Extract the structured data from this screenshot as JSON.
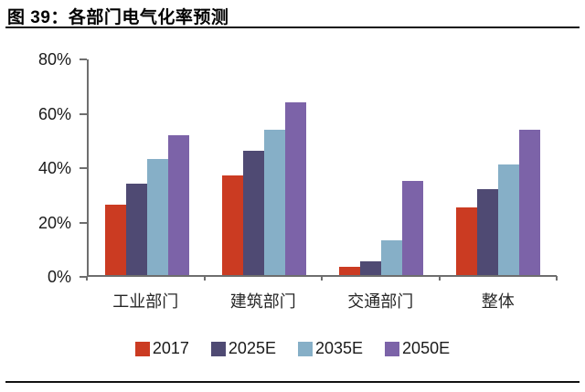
{
  "figure": {
    "title": "图 39：各部门电气化率预测"
  },
  "chart_data": {
    "type": "bar",
    "title": "各部门电气化率预测",
    "categories": [
      "工业部门",
      "建筑部门",
      "交通部门",
      "整体"
    ],
    "series": [
      {
        "name": "2017",
        "color": "#CB3B22",
        "values": [
          26,
          37,
          3,
          25
        ]
      },
      {
        "name": "2025E",
        "color": "#4F4A73",
        "values": [
          34,
          46,
          5,
          32
        ]
      },
      {
        "name": "2035E",
        "color": "#86AFC7",
        "values": [
          43,
          54,
          13,
          41
        ]
      },
      {
        "name": "2050E",
        "color": "#7C63A8",
        "values": [
          52,
          64,
          35,
          54
        ]
      }
    ],
    "xlabel": "",
    "ylabel": "",
    "ylim": [
      0,
      80
    ],
    "yticks": [
      0,
      20,
      40,
      60,
      80
    ],
    "ytick_suffix": "%",
    "grid": false,
    "legend_position": "bottom",
    "axis_color": "#6e6e6e"
  }
}
